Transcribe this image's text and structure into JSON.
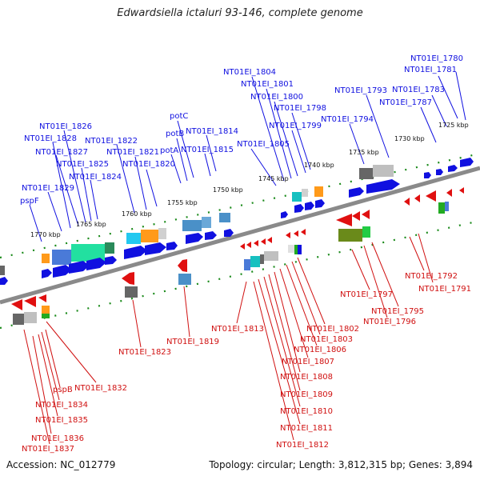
{
  "title": "Edwardsiella ictaluri 93-146, complete genome",
  "footer": {
    "accession": "Accession: NC_012779",
    "topology": "Topology: circular; Length: 3,812,315 bp; Genes: 3,894"
  },
  "scale_ticks": [
    "1725 kbp",
    "1730 kbp",
    "1735 kbp",
    "1740 kbp",
    "1745 kbp",
    "1750 kbp",
    "1755 kbp",
    "1760 kbp",
    "1765 kbp",
    "1770 kbp"
  ],
  "labels_top": [
    "NT01EI_1780",
    "NT01EI_1781",
    "NT01EI_1783",
    "NT01EI_1787",
    "NT01EI_1793",
    "NT01EI_1794",
    "NT01EI_1798",
    "NT01EI_1799",
    "NT01EI_1800",
    "NT01EI_1801",
    "NT01EI_1804",
    "NT01EI_1805",
    "NT01EI_1814",
    "NT01EI_1815",
    "potC",
    "potB",
    "potA",
    "NT01EI_1820",
    "NT01EI_1821",
    "NT01EI_1822",
    "NT01EI_1824",
    "NT01EI_1825",
    "NT01EI_1826",
    "NT01EI_1827",
    "NT01EI_1828",
    "NT01EI_1829",
    "pspF"
  ],
  "labels_bottom": [
    "NT01EI_1791",
    "NT01EI_1792",
    "NT01EI_1795",
    "NT01EI_1796",
    "NT01EI_1797",
    "NT01EI_1802",
    "NT01EI_1803",
    "NT01EI_1806",
    "NT01EI_1807",
    "NT01EI_1808",
    "NT01EI_1809",
    "NT01EI_1810",
    "NT01EI_1811",
    "NT01EI_1812",
    "NT01EI_1813",
    "NT01EI_1819",
    "NT01EI_1823",
    "NT01EI_1832",
    "pspB",
    "NT01EI_1834",
    "NT01EI_1835",
    "NT01EI_1836",
    "NT01EI_1837"
  ],
  "colors": {
    "forward_gene": "#1010e0",
    "reverse_gene": "#e01010",
    "forward_label": "#1010e0",
    "reverse_label": "#d01010",
    "backbone": "#808080",
    "tick_marks": "#1a8a1a"
  }
}
